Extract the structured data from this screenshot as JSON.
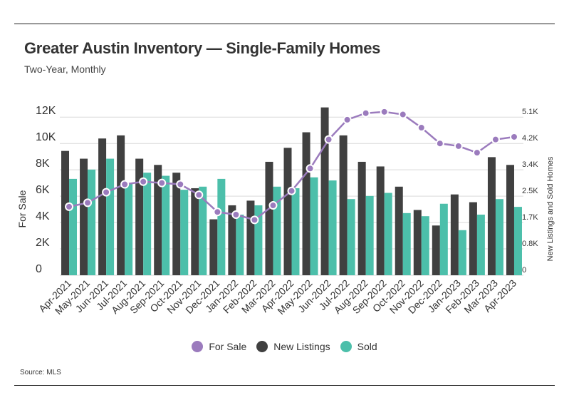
{
  "title": "Greater Austin Inventory — Single-Family Homes",
  "subtitle": "Two-Year, Monthly",
  "source": "Source: MLS",
  "colors": {
    "for_sale": "#9b7bbd",
    "new_listings": "#404040",
    "sold": "#4cbfaa",
    "grid": "#d9d9d9",
    "text": "#333333"
  },
  "legend": {
    "for_sale": "For Sale",
    "new_listings": "New Listings",
    "sold": "Sold"
  },
  "chart_data": {
    "type": "bar",
    "title": "Greater Austin Inventory — Single-Family Homes",
    "subtitle": "Two-Year, Monthly",
    "categories": [
      "Apr-2021",
      "May-2021",
      "Jun-2021",
      "Jul-2021",
      "Aug-2021",
      "Sep-2021",
      "Oct-2021",
      "Nov-2021",
      "Dec-2021",
      "Jan-2022",
      "Feb-2022",
      "Mar-2022",
      "Apr-2022",
      "May-2022",
      "Jun-2022",
      "Jul-2022",
      "Aug-2022",
      "Sep-2022",
      "Oct-2022",
      "Nov-2022",
      "Dec-2022",
      "Jan-2023",
      "Feb-2023",
      "Mar-2023",
      "Apr-2023"
    ],
    "left_axis": {
      "label": "For Sale",
      "ticks": [
        "0",
        "2K",
        "4K",
        "6K",
        "8K",
        "10K",
        "12K"
      ],
      "range": [
        0,
        12500
      ]
    },
    "right_axis": {
      "label": "New Listings and Sold Homes",
      "ticks": [
        "0",
        "0.8K",
        "1.7K",
        "2.5K",
        "3.4K",
        "4.2K",
        "5.1K"
      ],
      "range": [
        0,
        5300
      ]
    },
    "series": [
      {
        "name": "For Sale",
        "type": "line",
        "axis": "left",
        "values": [
          5200,
          5500,
          6300,
          6900,
          7100,
          7000,
          6900,
          6100,
          4800,
          4600,
          4200,
          5300,
          6400,
          8100,
          10300,
          11800,
          12300,
          12400,
          12200,
          11200,
          10000,
          9800,
          9300,
          10300,
          10500
        ]
      },
      {
        "name": "New Listings",
        "type": "bar",
        "axis": "right",
        "values": [
          4000,
          3750,
          4400,
          4500,
          3750,
          3550,
          3300,
          2800,
          1800,
          2250,
          2400,
          3650,
          4100,
          4600,
          5400,
          4500,
          3650,
          3500,
          2850,
          2100,
          1600,
          2600,
          2350,
          3800,
          3550
        ]
      },
      {
        "name": "Sold",
        "type": "bar",
        "axis": "right",
        "values": [
          3100,
          3400,
          3750,
          2950,
          3300,
          3200,
          2750,
          2850,
          3100,
          1950,
          2250,
          2850,
          2800,
          3150,
          3050,
          2450,
          2550,
          2650,
          2000,
          1900,
          2300,
          1450,
          1950,
          2450,
          2200
        ]
      }
    ],
    "grid": true,
    "legend_position": "bottom-center"
  }
}
